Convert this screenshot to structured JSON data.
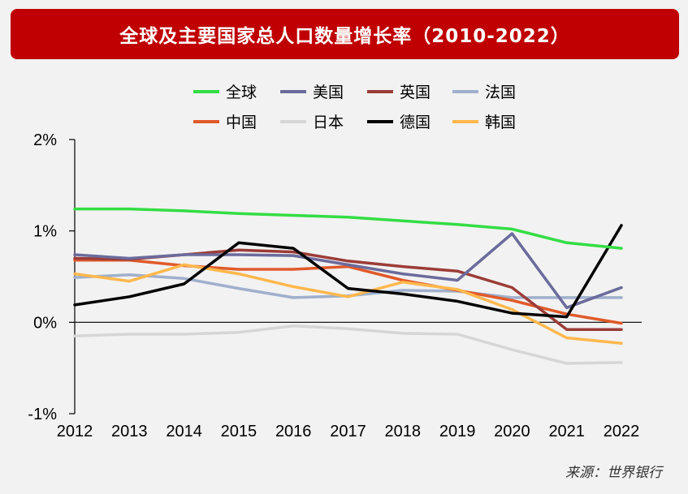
{
  "title": "全球及主要国家总人口数量增长率（2010-2022）",
  "source": "来源：世界银行",
  "chart_data": {
    "type": "line",
    "x": [
      "2012",
      "2013",
      "2014",
      "2015",
      "2016",
      "2017",
      "2018",
      "2019",
      "2020",
      "2021",
      "2022"
    ],
    "ylim": [
      -1,
      2
    ],
    "yticks": [
      -1,
      0,
      1,
      2
    ],
    "ytick_labels": [
      "-1%",
      "0%",
      "1%",
      "2%"
    ],
    "grid": false,
    "legend": "top",
    "series": [
      {
        "name": "全球",
        "color": "#33dd44",
        "values": [
          1.24,
          1.24,
          1.22,
          1.19,
          1.17,
          1.15,
          1.11,
          1.07,
          1.02,
          0.87,
          0.81
        ]
      },
      {
        "name": "美国",
        "color": "#6b6b9c",
        "values": [
          0.74,
          0.7,
          0.74,
          0.74,
          0.73,
          0.63,
          0.53,
          0.46,
          0.97,
          0.16,
          0.38
        ]
      },
      {
        "name": "英国",
        "color": "#9c3c38",
        "values": [
          0.7,
          0.69,
          0.74,
          0.79,
          0.77,
          0.67,
          0.61,
          0.56,
          0.38,
          -0.08,
          -0.08
        ]
      },
      {
        "name": "法国",
        "color": "#9fb0cc",
        "values": [
          0.49,
          0.52,
          0.48,
          0.37,
          0.27,
          0.29,
          0.35,
          0.34,
          0.27,
          0.27,
          0.27
        ]
      },
      {
        "name": "中国",
        "color": "#e05a2a",
        "values": [
          0.68,
          0.68,
          0.62,
          0.58,
          0.58,
          0.61,
          0.46,
          0.35,
          0.24,
          0.09,
          -0.01
        ]
      },
      {
        "name": "日本",
        "color": "#d6d6d6",
        "values": [
          -0.15,
          -0.13,
          -0.13,
          -0.11,
          -0.04,
          -0.07,
          -0.12,
          -0.13,
          -0.3,
          -0.45,
          -0.44
        ]
      },
      {
        "name": "德国",
        "color": "#000000",
        "values": [
          0.19,
          0.28,
          0.42,
          0.87,
          0.81,
          0.37,
          0.31,
          0.23,
          0.1,
          0.06,
          1.06
        ]
      },
      {
        "name": "韩国",
        "color": "#ffb84d",
        "values": [
          0.53,
          0.45,
          0.63,
          0.53,
          0.39,
          0.28,
          0.44,
          0.36,
          0.14,
          -0.17,
          -0.23
        ]
      }
    ]
  }
}
